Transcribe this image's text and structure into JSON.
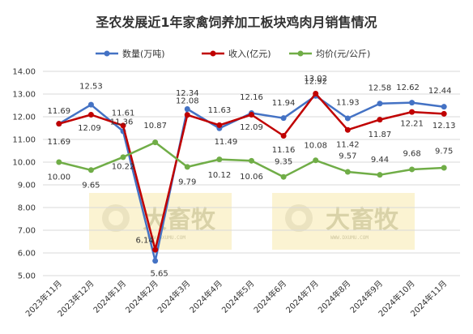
{
  "chart_data": {
    "type": "line",
    "title": "圣农发展近1年家禽饲养加工板块鸡肉月销售情况",
    "categories": [
      "2023年11月",
      "2023年12月",
      "2024年1月",
      "2024年2月",
      "2024年3月",
      "2024年4月",
      "2024年5月",
      "2024年6月",
      "2024年7月",
      "2024年8月",
      "2024年9月",
      "2024年10月",
      "2024年11月"
    ],
    "ylim": [
      5.0,
      14.0
    ],
    "yticks": [
      "5.00",
      "6.00",
      "7.00",
      "8.00",
      "9.00",
      "10.00",
      "11.00",
      "12.00",
      "13.00",
      "14.00"
    ],
    "grid": true,
    "legend_position": "top",
    "series": [
      {
        "name": "数量(万吨)",
        "color": "#4472c4",
        "values": [
          11.69,
          12.53,
          11.36,
          5.65,
          12.34,
          11.49,
          12.16,
          11.94,
          12.92,
          11.93,
          12.58,
          12.62,
          12.44
        ],
        "labels": [
          "11.69",
          "12.53",
          "11.36",
          "5.65",
          "12.34",
          "11.49",
          "12.16",
          "11.94",
          "12.92",
          "11.93",
          "12.58",
          "12.62",
          "12.44"
        ]
      },
      {
        "name": "收入(亿元)",
        "color": "#c00000",
        "values": [
          11.69,
          12.09,
          11.61,
          6.14,
          12.08,
          11.63,
          12.09,
          11.16,
          13.02,
          11.42,
          11.87,
          12.21,
          12.13
        ],
        "labels": [
          "11.69",
          "12.09",
          "11.61",
          "6.14",
          "12.08",
          "11.63",
          "12.09",
          "11.16",
          "13.02",
          "11.42",
          "11.87",
          "12.21",
          "12.13"
        ]
      },
      {
        "name": "均价(元/公斤)",
        "color": "#70ad47",
        "values": [
          10.0,
          9.65,
          10.22,
          10.87,
          9.79,
          10.12,
          10.06,
          9.35,
          10.08,
          9.57,
          9.44,
          9.68,
          9.75
        ],
        "labels": [
          "10.00",
          "9.65",
          "10.22",
          "10.87",
          "9.79",
          "10.12",
          "10.06",
          "9.35",
          "10.08",
          "9.57",
          "9.44",
          "9.68",
          "9.75"
        ]
      }
    ]
  },
  "watermark": {
    "brand": "大畜牧",
    "url": "WWW.DXUMU.COM",
    "box_color": "#fbf3d2"
  }
}
